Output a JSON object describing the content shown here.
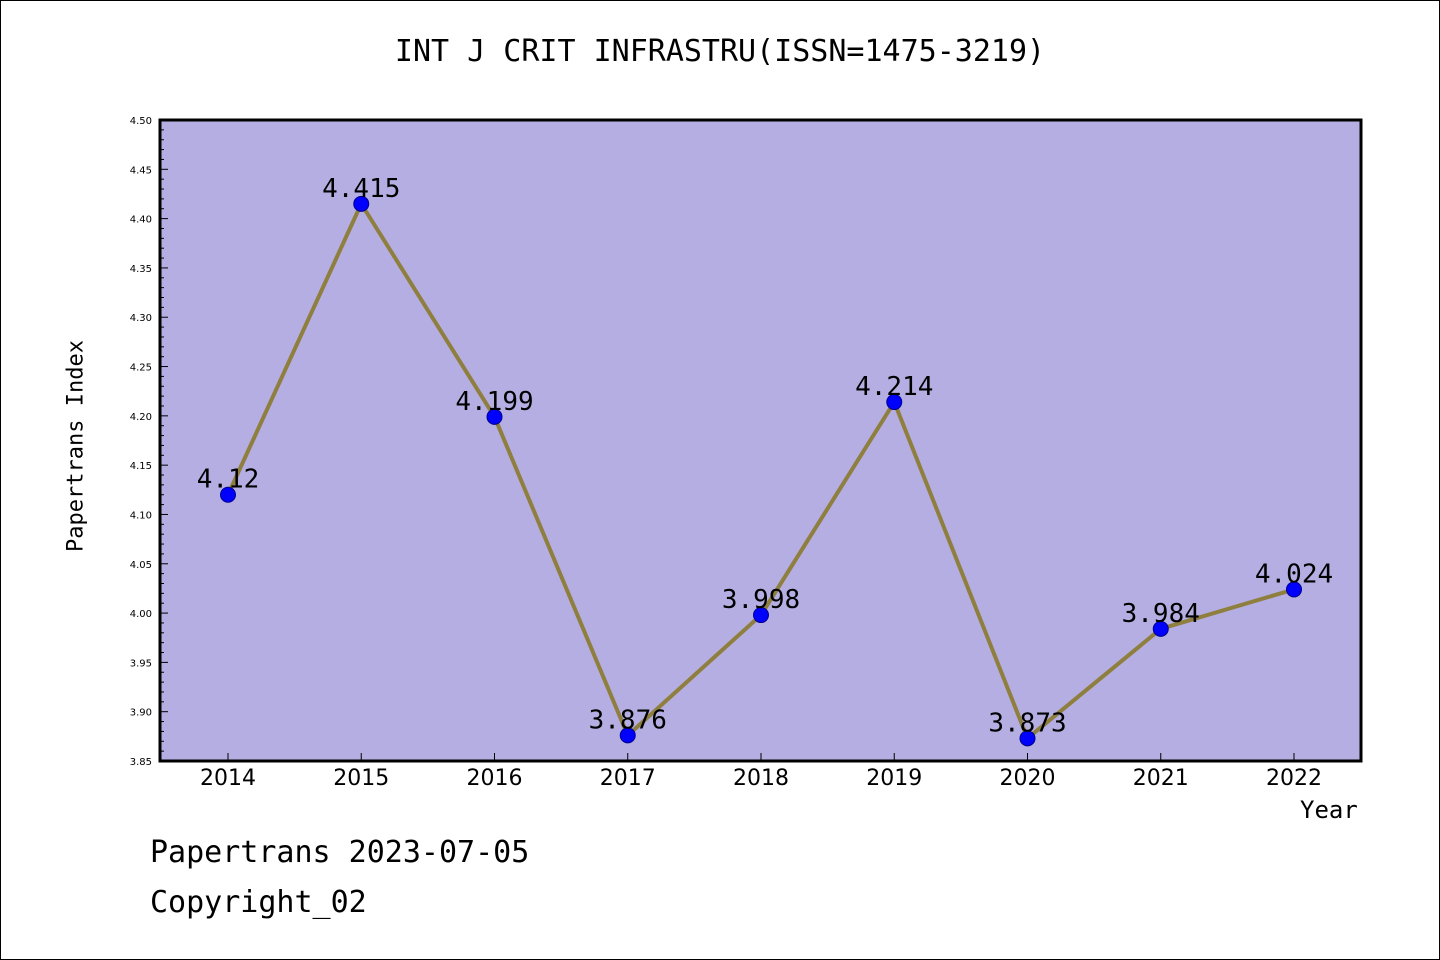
{
  "chart_data": {
    "type": "line",
    "title": "INT J CRIT INFRASTRU(ISSN=1475-3219)",
    "xlabel": "Year",
    "ylabel": "Papertrans Index",
    "categories": [
      "2014",
      "2015",
      "2016",
      "2017",
      "2018",
      "2019",
      "2020",
      "2021",
      "2022"
    ],
    "values": [
      4.12,
      4.415,
      4.199,
      3.876,
      3.998,
      4.214,
      3.873,
      3.984,
      4.024
    ],
    "data_labels": [
      "4.12",
      "4.415",
      "4.199",
      "3.876",
      "3.998",
      "4.214",
      "3.873",
      "3.984",
      "4.024"
    ],
    "ylim": [
      3.85,
      4.5
    ],
    "y_ticks": [
      "3.85",
      "3.90",
      "3.95",
      "4.00",
      "4.05",
      "4.10",
      "4.15",
      "4.20",
      "4.25",
      "4.30",
      "4.35",
      "4.40",
      "4.45",
      "4.50"
    ],
    "grid": false,
    "legend": "none",
    "colors": {
      "plot_background": "#b5aee2",
      "line": "#8f7f3f",
      "marker": "#0000ff"
    }
  },
  "footer": {
    "line1": "Papertrans 2023-07-05",
    "line2": "Copyright_02"
  }
}
